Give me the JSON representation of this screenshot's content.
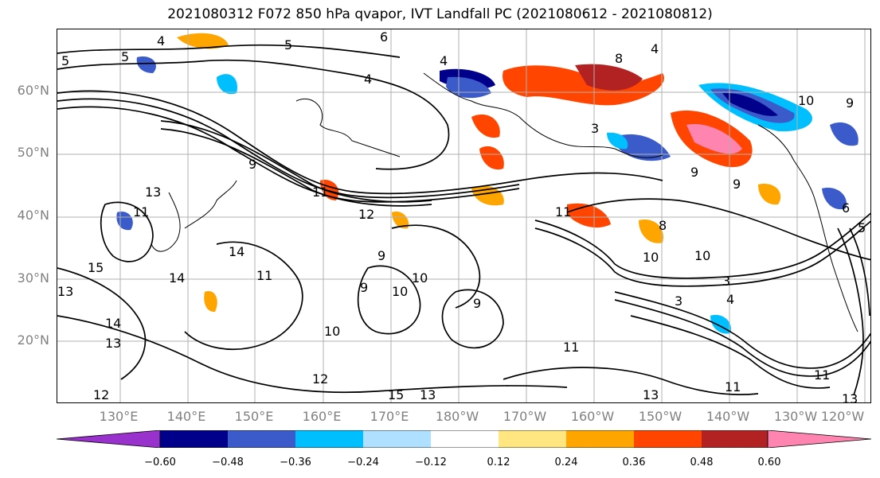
{
  "title": "2021080312 F072 850 hPa qvapor, IVT Landfall PC (2021080612 - 2021080812)",
  "map": {
    "lat_labels": [
      "60°N",
      "50°N",
      "40°N",
      "30°N",
      "20°N"
    ],
    "lon_labels": [
      "130°E",
      "140°E",
      "150°E",
      "160°E",
      "170°E",
      "180°W",
      "170°W",
      "160°W",
      "150°W",
      "140°W",
      "130°W",
      "120°W"
    ],
    "contour_labels": [
      "4",
      "5",
      "5",
      "6",
      "5",
      "4",
      "4",
      "8",
      "4",
      "10",
      "9",
      "3",
      "9",
      "13",
      "11",
      "9",
      "9",
      "8",
      "12",
      "11",
      "11",
      "6",
      "5",
      "14",
      "15",
      "13",
      "14",
      "11",
      "9",
      "10",
      "9",
      "10",
      "10",
      "10",
      "3",
      "3",
      "4",
      "9",
      "13",
      "14",
      "10",
      "12",
      "11",
      "11",
      "15",
      "13",
      "12",
      "11",
      "13",
      "13"
    ],
    "grid": true
  },
  "colorbar": {
    "ticks": [
      "−0.60",
      "−0.48",
      "−0.36",
      "−0.24",
      "−0.12",
      "0.12",
      "0.24",
      "0.36",
      "0.48",
      "0.60"
    ],
    "colors": [
      "#9932cc",
      "#00008b",
      "#3a5bc9",
      "#00bfff",
      "#b0e0ff",
      "#ffffff",
      "#ffe680",
      "#ffa500",
      "#ff4500",
      "#b22222",
      "#ff85b0",
      "#ff85b0"
    ]
  }
}
